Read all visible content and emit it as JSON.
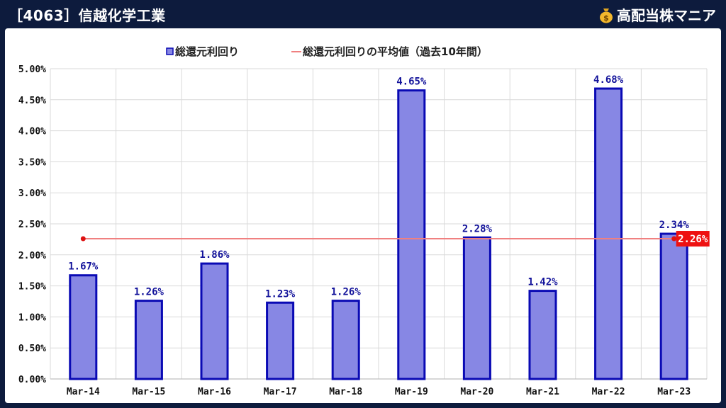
{
  "header": {
    "title": "［4063］信越化学工業"
  },
  "brand": {
    "name": "高配当株マニア",
    "icon": "money-bag-icon"
  },
  "colors": {
    "bar_fill": "#8787e4",
    "bar_stroke": "#0a0ab4",
    "avg_line": "#f08080",
    "avg_dot": "#dd1111",
    "avg_badge": "#ee1111",
    "label": "#12129a"
  },
  "chart_data": {
    "type": "bar",
    "categories": [
      "Mar-14",
      "Mar-15",
      "Mar-16",
      "Mar-17",
      "Mar-18",
      "Mar-19",
      "Mar-20",
      "Mar-21",
      "Mar-22",
      "Mar-23"
    ],
    "series": [
      {
        "name": "総還元利回り",
        "type": "bar",
        "values": [
          1.67,
          1.26,
          1.86,
          1.23,
          1.26,
          4.65,
          2.28,
          1.42,
          4.68,
          2.34
        ],
        "data_labels": [
          "1.67%",
          "1.26%",
          "1.86%",
          "1.23%",
          "1.26%",
          "4.65%",
          "2.28%",
          "1.42%",
          "4.68%",
          "2.34%"
        ]
      },
      {
        "name": "総還元利回りの平均値（過去10年間）",
        "type": "line",
        "value": 2.26,
        "label": "2.26%"
      }
    ],
    "ylim": [
      0,
      5
    ],
    "yticks": [
      "0.00%",
      "0.50%",
      "1.00%",
      "1.50%",
      "2.00%",
      "2.50%",
      "3.00%",
      "3.50%",
      "4.00%",
      "4.50%",
      "5.00%"
    ],
    "grid": true,
    "legend_position": "top"
  }
}
